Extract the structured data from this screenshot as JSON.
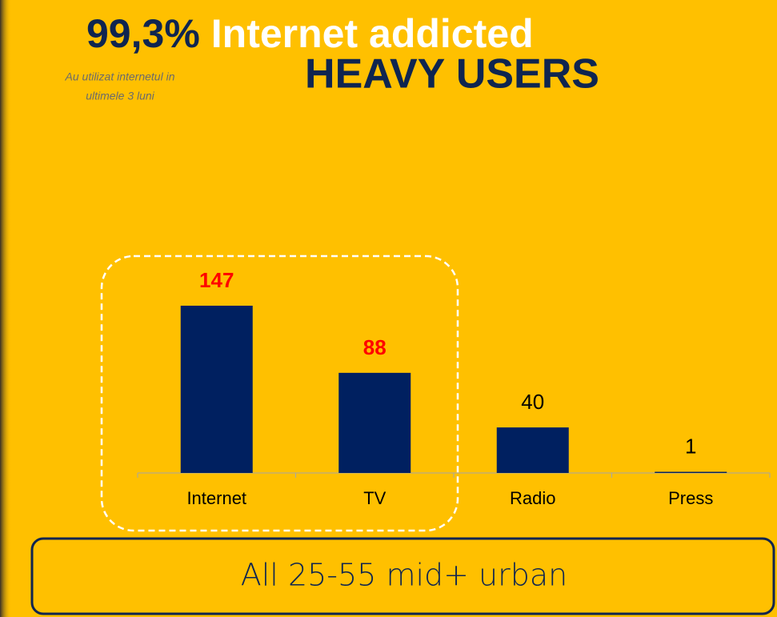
{
  "chart_data": {
    "type": "bar",
    "title_number": "99,3%",
    "title": "Internet addicted",
    "subtitle": "HEAVY USERS",
    "note": [
      "Au utilizat internetul in",
      "ultimele 3 luni"
    ],
    "categories": [
      "Internet",
      "TV",
      "Radio",
      "Press"
    ],
    "values": [
      147,
      88,
      40,
      1
    ],
    "color": "#002060",
    "value_label_colors": [
      "#ff0000",
      "#ff0000",
      "#000000",
      "#000000"
    ],
    "value_label_bold": [
      true,
      true,
      false,
      false
    ],
    "footer": "All 25-55 mid+ urban"
  }
}
